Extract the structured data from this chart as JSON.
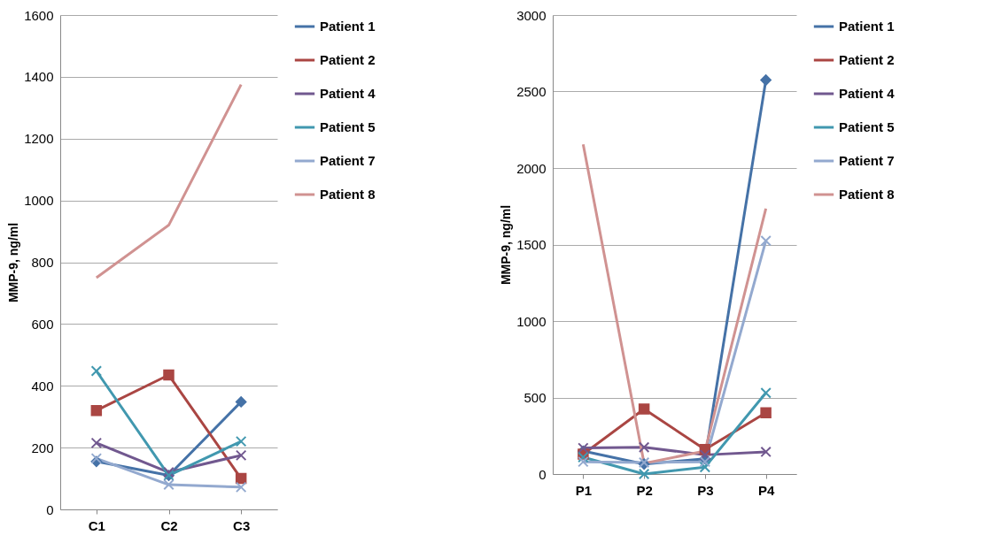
{
  "chart_data": [
    {
      "type": "line",
      "ylabel": "MMP-9, ng/ml",
      "categories": [
        "C1",
        "C2",
        "C3"
      ],
      "ylim": [
        0,
        1600
      ],
      "yticks": [
        0,
        200,
        400,
        600,
        800,
        1000,
        1200,
        1400,
        1600
      ],
      "grid": "y",
      "legend": "right",
      "series": [
        {
          "name": "Patient 1",
          "color": "#4572a7",
          "marker": "diamond",
          "values": [
            155,
            110,
            348
          ]
        },
        {
          "name": "Patient 2",
          "color": "#aa4643",
          "marker": "square",
          "values": [
            320,
            435,
            100
          ]
        },
        {
          "name": "Patient 4",
          "color": "#71588f",
          "marker": "cross",
          "values": [
            215,
            120,
            175
          ]
        },
        {
          "name": "Patient 5",
          "color": "#4198af",
          "marker": "cross",
          "values": [
            448,
            110,
            220
          ]
        },
        {
          "name": "Patient 7",
          "color": "#93a9cf",
          "marker": "cross",
          "values": [
            165,
            80,
            72
          ]
        },
        {
          "name": "Patient 8",
          "color": "#d09291",
          "marker": "none",
          "values": [
            750,
            920,
            1375
          ]
        }
      ]
    },
    {
      "type": "line",
      "ylabel": "MMP-9, ng/ml",
      "categories": [
        "P1",
        "P2",
        "P3",
        "P4"
      ],
      "ylim": [
        0,
        3000
      ],
      "yticks": [
        0,
        500,
        1000,
        1500,
        2000,
        2500,
        3000
      ],
      "grid": "y",
      "legend": "right",
      "series": [
        {
          "name": "Patient 1",
          "color": "#4572a7",
          "marker": "diamond",
          "values": [
            150,
            65,
            100,
            2575
          ]
        },
        {
          "name": "Patient 2",
          "color": "#aa4643",
          "marker": "square",
          "values": [
            130,
            425,
            160,
            400
          ]
        },
        {
          "name": "Patient 4",
          "color": "#71588f",
          "marker": "cross",
          "values": [
            170,
            175,
            125,
            145
          ]
        },
        {
          "name": "Patient 5",
          "color": "#4198af",
          "marker": "cross",
          "values": [
            110,
            0,
            45,
            530
          ]
        },
        {
          "name": "Patient 7",
          "color": "#93a9cf",
          "marker": "cross",
          "values": [
            80,
            75,
            80,
            1525
          ]
        },
        {
          "name": "Patient 8",
          "color": "#d09291",
          "marker": "none",
          "values": [
            2155,
            70,
            150,
            1735
          ]
        }
      ]
    }
  ]
}
